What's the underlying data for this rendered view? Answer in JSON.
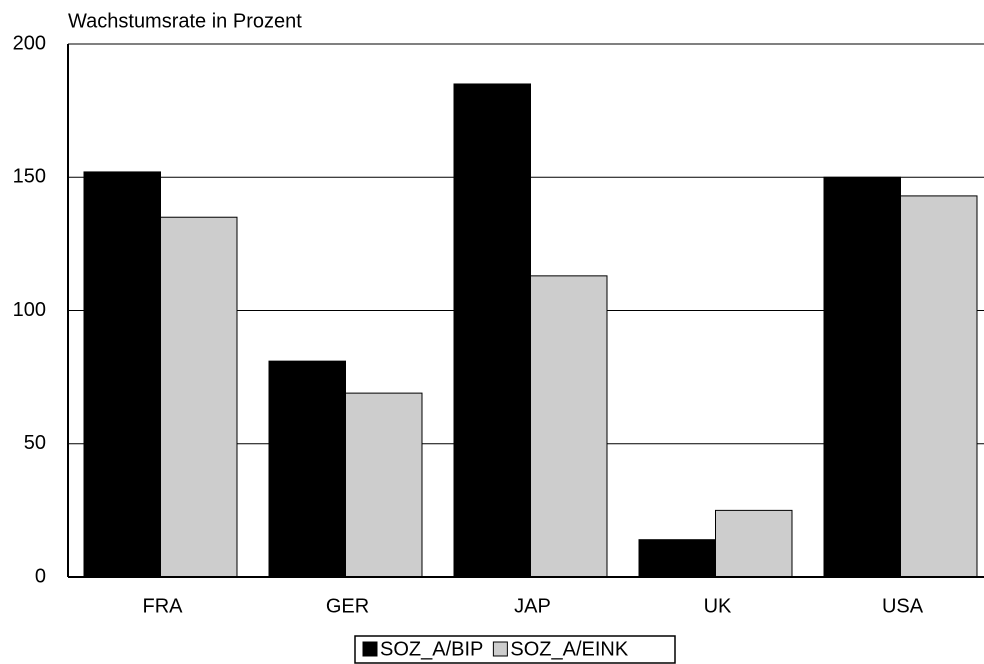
{
  "chart_data": {
    "type": "bar",
    "title": "Wachstumsrate in Prozent",
    "categories": [
      "FRA",
      "GER",
      "JAP",
      "UK",
      "USA"
    ],
    "series": [
      {
        "name": "SOZ_A/BIP",
        "color": "#000000",
        "values": [
          152,
          81,
          185,
          14,
          150
        ]
      },
      {
        "name": "SOZ_A/EINK",
        "color": "#cdcdcd",
        "values": [
          135,
          69,
          113,
          25,
          143
        ]
      }
    ],
    "ylim": [
      0,
      200
    ],
    "yticks": [
      0,
      50,
      100,
      150,
      200
    ],
    "grid": true
  }
}
